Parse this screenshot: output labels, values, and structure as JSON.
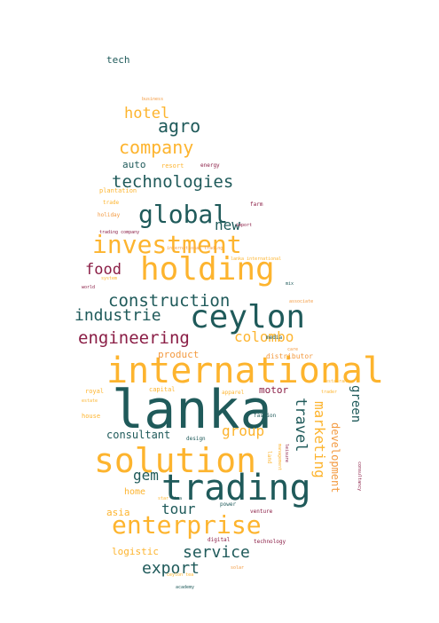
{
  "colors": {
    "teal": "#1f5a5a",
    "gold": "#fdb42e",
    "maroon": "#8a1d45",
    "orange": "#f39a40"
  },
  "words": [
    {
      "text": "lanka",
      "color": "teal"
    },
    {
      "text": "international",
      "color": "gold"
    },
    {
      "text": "trading",
      "color": "teal"
    },
    {
      "text": "solution",
      "color": "gold"
    },
    {
      "text": "holding",
      "color": "gold"
    },
    {
      "text": "ceylon",
      "color": "teal"
    },
    {
      "text": "enterprise",
      "color": "gold"
    },
    {
      "text": "investment",
      "color": "gold"
    },
    {
      "text": "global",
      "color": "teal"
    },
    {
      "text": "engineering",
      "color": "maroon"
    },
    {
      "text": "construction",
      "color": "teal"
    },
    {
      "text": "technologies",
      "color": "teal"
    },
    {
      "text": "company",
      "color": "gold"
    },
    {
      "text": "industrie",
      "color": "teal"
    },
    {
      "text": "service",
      "color": "teal"
    },
    {
      "text": "export",
      "color": "teal"
    },
    {
      "text": "tour",
      "color": "teal"
    },
    {
      "text": "group",
      "color": "gold"
    },
    {
      "text": "colombo",
      "color": "gold"
    },
    {
      "text": "food",
      "color": "maroon"
    },
    {
      "text": "hotel",
      "color": "gold"
    },
    {
      "text": "agro",
      "color": "teal"
    },
    {
      "text": "new",
      "color": "teal"
    },
    {
      "text": "gem",
      "color": "teal"
    },
    {
      "text": "travel",
      "color": "teal"
    },
    {
      "text": "marketing",
      "color": "gold"
    },
    {
      "text": "green",
      "color": "teal"
    },
    {
      "text": "development",
      "color": "orange"
    },
    {
      "text": "consultant",
      "color": "teal"
    },
    {
      "text": "product",
      "color": "orange"
    },
    {
      "text": "motor",
      "color": "maroon"
    },
    {
      "text": "logistic",
      "color": "gold"
    },
    {
      "text": "asia",
      "color": "gold"
    },
    {
      "text": "home",
      "color": "gold"
    },
    {
      "text": "auto",
      "color": "teal"
    },
    {
      "text": "tech",
      "color": "teal"
    },
    {
      "text": "resort",
      "color": "gold"
    },
    {
      "text": "energy",
      "color": "maroon"
    },
    {
      "text": "plantation",
      "color": "gold"
    },
    {
      "text": "trade",
      "color": "gold"
    },
    {
      "text": "holiday",
      "color": "orange"
    },
    {
      "text": "trading company",
      "color": "maroon"
    },
    {
      "text": "business",
      "color": "orange"
    },
    {
      "text": "capital",
      "color": "gold"
    },
    {
      "text": "apparel",
      "color": "gold"
    },
    {
      "text": "royal",
      "color": "gold"
    },
    {
      "text": "house",
      "color": "gold"
    },
    {
      "text": "distributor",
      "color": "orange"
    },
    {
      "text": "media",
      "color": "teal"
    },
    {
      "text": "import",
      "color": "maroon"
    },
    {
      "text": "farm",
      "color": "maroon"
    },
    {
      "text": "design",
      "color": "teal"
    },
    {
      "text": "fashion",
      "color": "teal"
    },
    {
      "text": "power",
      "color": "teal"
    },
    {
      "text": "venture",
      "color": "maroon"
    },
    {
      "text": "digital",
      "color": "maroon"
    },
    {
      "text": "technology",
      "color": "maroon"
    },
    {
      "text": "academy",
      "color": "teal"
    },
    {
      "text": "land",
      "color": "gold"
    },
    {
      "text": "system",
      "color": "gold"
    },
    {
      "text": "world",
      "color": "maroon"
    },
    {
      "text": "star",
      "color": "gold"
    },
    {
      "text": "tea",
      "color": "teal"
    },
    {
      "text": "estate",
      "color": "gold"
    },
    {
      "text": "associate",
      "color": "orange"
    },
    {
      "text": "mix",
      "color": "teal"
    },
    {
      "text": "solar",
      "color": "orange"
    },
    {
      "text": "management",
      "color": "gold"
    },
    {
      "text": "consultancy",
      "color": "maroon"
    },
    {
      "text": "leisure",
      "color": "maroon"
    },
    {
      "text": "trader",
      "color": "gold"
    },
    {
      "text": "restaurant",
      "color": "gold"
    },
    {
      "text": "care",
      "color": "orange"
    },
    {
      "text": "lanka international",
      "color": "gold"
    },
    {
      "text": "international trading",
      "color": "orange"
    },
    {
      "text": "ceylon tea",
      "color": "gold"
    }
  ]
}
